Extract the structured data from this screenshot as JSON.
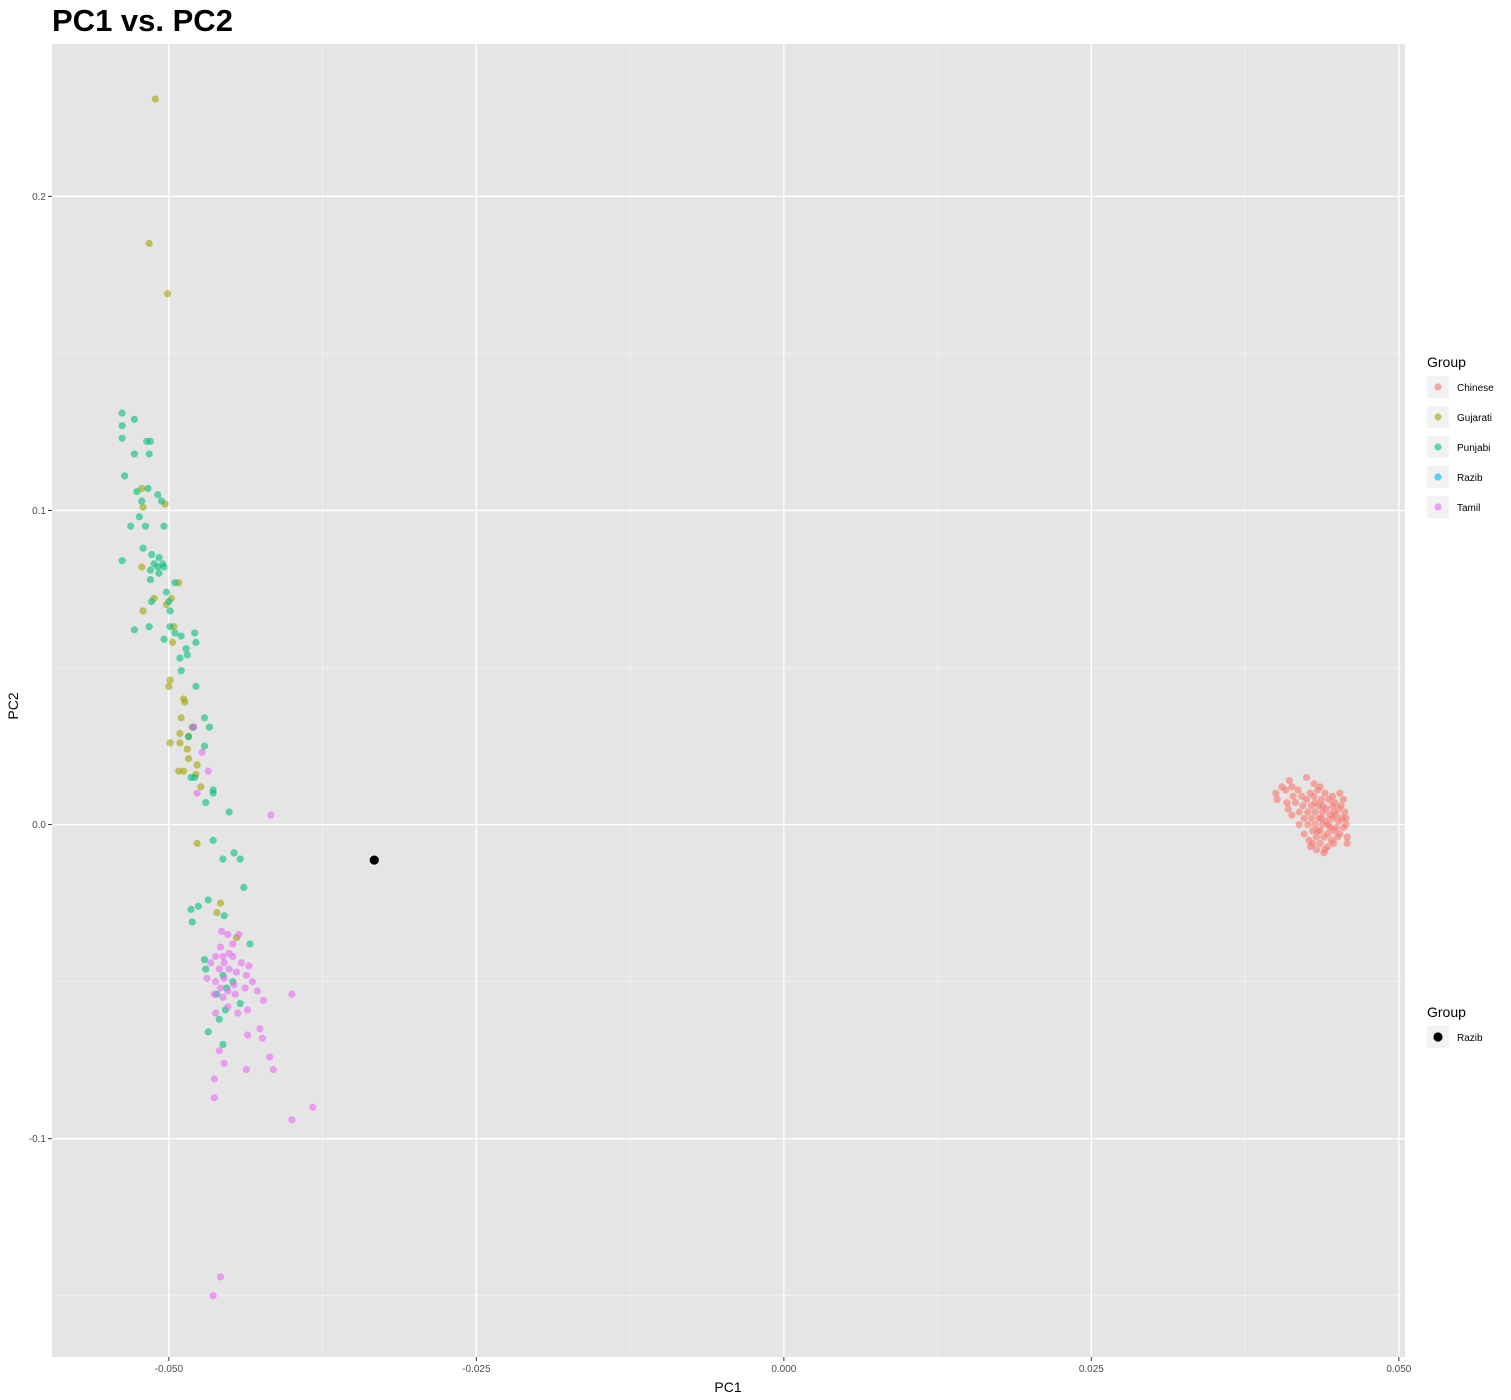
{
  "chart_data": {
    "type": "scatter",
    "title": "PC1 vs. PC2",
    "xlabel": "PC1",
    "ylabel": "PC2",
    "xlim": [
      -0.0595,
      0.0505
    ],
    "ylim": [
      -0.1695,
      0.2485
    ],
    "x_ticks": [
      {
        "value": -0.05,
        "label": "-0.050"
      },
      {
        "value": -0.025,
        "label": "-0.025"
      },
      {
        "value": 0.0,
        "label": "0.000"
      },
      {
        "value": 0.025,
        "label": "0.025"
      },
      {
        "value": 0.05,
        "label": "0.050"
      }
    ],
    "y_ticks": [
      {
        "value": -0.1,
        "label": "-0.1"
      },
      {
        "value": 0.0,
        "label": "0.0"
      },
      {
        "value": 0.1,
        "label": "0.1"
      },
      {
        "value": 0.2,
        "label": "0.2"
      }
    ],
    "grid": true,
    "background": "#e5e5e5",
    "legend_position": "right",
    "legends": [
      {
        "title": "Group",
        "entries": [
          {
            "label": "Chinese",
            "color": "#F8766D"
          },
          {
            "label": "Gujarati",
            "color": "#A3A500"
          },
          {
            "label": "Punjabi",
            "color": "#00BF7D"
          },
          {
            "label": "Razib",
            "color": "#00B0F6"
          },
          {
            "label": "Tamil",
            "color": "#E76BF3"
          }
        ]
      },
      {
        "title": "Group",
        "entries": [
          {
            "label": "Razib",
            "color": "#000000"
          }
        ]
      }
    ],
    "series": [
      {
        "name": "Gujarati",
        "color": "#A3A500",
        "opacity": 0.6,
        "points": [
          [
            -0.0511,
            0.231
          ],
          [
            -0.0516,
            0.185
          ],
          [
            -0.0501,
            0.169
          ],
          [
            -0.0522,
            0.107
          ],
          [
            -0.0521,
            0.101
          ],
          [
            -0.0503,
            0.102
          ],
          [
            -0.0522,
            0.082
          ],
          [
            -0.0512,
            0.072
          ],
          [
            -0.0492,
            0.077
          ],
          [
            -0.0498,
            0.072
          ],
          [
            -0.0502,
            0.07
          ],
          [
            -0.0521,
            0.068
          ],
          [
            -0.0496,
            0.063
          ],
          [
            -0.0497,
            0.058
          ],
          [
            -0.0499,
            0.046
          ],
          [
            -0.05,
            0.044
          ],
          [
            -0.0488,
            0.04
          ],
          [
            -0.0487,
            0.039
          ],
          [
            -0.049,
            0.034
          ],
          [
            -0.0481,
            0.031
          ],
          [
            -0.0491,
            0.029
          ],
          [
            -0.0484,
            0.028
          ],
          [
            -0.0491,
            0.026
          ],
          [
            -0.0485,
            0.024
          ],
          [
            -0.0499,
            0.026
          ],
          [
            -0.0484,
            0.021
          ],
          [
            -0.0477,
            0.019
          ],
          [
            -0.0488,
            0.017
          ],
          [
            -0.0492,
            0.017
          ],
          [
            -0.0478,
            0.016
          ],
          [
            -0.0474,
            0.012
          ],
          [
            -0.0477,
            -0.006
          ],
          [
            -0.0458,
            -0.025
          ],
          [
            -0.0461,
            -0.028
          ],
          [
            -0.0445,
            -0.036
          ]
        ]
      },
      {
        "name": "Punjabi",
        "color": "#00BF7D",
        "opacity": 0.6,
        "points": [
          [
            -0.0538,
            0.131
          ],
          [
            -0.0538,
            0.127
          ],
          [
            -0.0538,
            0.123
          ],
          [
            -0.0528,
            0.129
          ],
          [
            -0.0518,
            0.122
          ],
          [
            -0.0515,
            0.122
          ],
          [
            -0.0528,
            0.118
          ],
          [
            -0.0516,
            0.118
          ],
          [
            -0.0536,
            0.111
          ],
          [
            -0.0517,
            0.107
          ],
          [
            -0.0509,
            0.105
          ],
          [
            -0.0506,
            0.103
          ],
          [
            -0.0526,
            0.106
          ],
          [
            -0.0522,
            0.103
          ],
          [
            -0.0524,
            0.098
          ],
          [
            -0.0531,
            0.095
          ],
          [
            -0.0519,
            0.095
          ],
          [
            -0.0504,
            0.095
          ],
          [
            -0.0521,
            0.088
          ],
          [
            -0.0514,
            0.086
          ],
          [
            -0.0508,
            0.085
          ],
          [
            -0.0512,
            0.083
          ],
          [
            -0.0509,
            0.082
          ],
          [
            -0.0504,
            0.082
          ],
          [
            -0.0515,
            0.081
          ],
          [
            -0.0508,
            0.08
          ],
          [
            -0.0505,
            0.083
          ],
          [
            -0.0515,
            0.078
          ],
          [
            -0.0538,
            0.084
          ],
          [
            -0.0502,
            0.074
          ],
          [
            -0.0495,
            0.077
          ],
          [
            -0.05,
            0.071
          ],
          [
            -0.0514,
            0.071
          ],
          [
            -0.0499,
            0.068
          ],
          [
            -0.0528,
            0.062
          ],
          [
            -0.0516,
            0.063
          ],
          [
            -0.0499,
            0.063
          ],
          [
            -0.0495,
            0.061
          ],
          [
            -0.0504,
            0.059
          ],
          [
            -0.049,
            0.06
          ],
          [
            -0.0479,
            0.061
          ],
          [
            -0.0478,
            0.058
          ],
          [
            -0.0486,
            0.056
          ],
          [
            -0.0485,
            0.054
          ],
          [
            -0.0491,
            0.053
          ],
          [
            -0.049,
            0.049
          ],
          [
            -0.0478,
            0.044
          ],
          [
            -0.0471,
            0.034
          ],
          [
            -0.0467,
            0.031
          ],
          [
            -0.048,
            0.031
          ],
          [
            -0.0484,
            0.028
          ],
          [
            -0.0471,
            0.025
          ],
          [
            -0.0479,
            0.015
          ],
          [
            -0.0482,
            0.015
          ],
          [
            -0.0464,
            0.011
          ],
          [
            -0.0464,
            0.01
          ],
          [
            -0.047,
            0.007
          ],
          [
            -0.0451,
            0.004
          ],
          [
            -0.0464,
            -0.005
          ],
          [
            -0.0456,
            -0.011
          ],
          [
            -0.0447,
            -0.009
          ],
          [
            -0.0442,
            -0.011
          ],
          [
            -0.0439,
            -0.02
          ],
          [
            -0.0468,
            -0.024
          ],
          [
            -0.0476,
            -0.026
          ],
          [
            -0.0482,
            -0.027
          ],
          [
            -0.0481,
            -0.031
          ],
          [
            -0.0455,
            -0.029
          ],
          [
            -0.0434,
            -0.038
          ],
          [
            -0.0471,
            -0.043
          ],
          [
            -0.047,
            -0.046
          ],
          [
            -0.0456,
            -0.048
          ],
          [
            -0.0453,
            -0.052
          ],
          [
            -0.0442,
            -0.057
          ],
          [
            -0.0461,
            -0.054
          ],
          [
            -0.0459,
            -0.062
          ],
          [
            -0.0454,
            -0.059
          ],
          [
            -0.0468,
            -0.066
          ],
          [
            -0.0456,
            -0.07
          ],
          [
            -0.0448,
            -0.05
          ]
        ]
      },
      {
        "name": "Tamil",
        "color": "#E76BF3",
        "opacity": 0.6,
        "points": [
          [
            -0.0417,
            0.003
          ],
          [
            -0.048,
            0.031
          ],
          [
            -0.0473,
            0.023
          ],
          [
            -0.0468,
            0.017
          ],
          [
            -0.0477,
            0.01
          ],
          [
            -0.0457,
            -0.034
          ],
          [
            -0.0452,
            -0.035
          ],
          [
            -0.0443,
            -0.035
          ],
          [
            -0.0448,
            -0.038
          ],
          [
            -0.0458,
            -0.039
          ],
          [
            -0.0451,
            -0.041
          ],
          [
            -0.0456,
            -0.042
          ],
          [
            -0.0462,
            -0.042
          ],
          [
            -0.0448,
            -0.042
          ],
          [
            -0.0455,
            -0.044
          ],
          [
            -0.0466,
            -0.044
          ],
          [
            -0.0441,
            -0.044
          ],
          [
            -0.0435,
            -0.045
          ],
          [
            -0.0451,
            -0.046
          ],
          [
            -0.0459,
            -0.046
          ],
          [
            -0.0445,
            -0.047
          ],
          [
            -0.0437,
            -0.048
          ],
          [
            -0.0455,
            -0.049
          ],
          [
            -0.0469,
            -0.049
          ],
          [
            -0.0462,
            -0.05
          ],
          [
            -0.0447,
            -0.051
          ],
          [
            -0.0438,
            -0.052
          ],
          [
            -0.0458,
            -0.052
          ],
          [
            -0.0452,
            -0.053
          ],
          [
            -0.0463,
            -0.054
          ],
          [
            -0.0432,
            -0.05
          ],
          [
            -0.0428,
            -0.053
          ],
          [
            -0.0446,
            -0.054
          ],
          [
            -0.0456,
            -0.055
          ],
          [
            -0.0423,
            -0.056
          ],
          [
            -0.0452,
            -0.058
          ],
          [
            -0.0436,
            -0.059
          ],
          [
            -0.0444,
            -0.06
          ],
          [
            -0.0462,
            -0.06
          ],
          [
            -0.0426,
            -0.065
          ],
          [
            -0.0424,
            -0.068
          ],
          [
            -0.0436,
            -0.067
          ],
          [
            -0.0459,
            -0.072
          ],
          [
            -0.0455,
            -0.076
          ],
          [
            -0.0418,
            -0.074
          ],
          [
            -0.0437,
            -0.078
          ],
          [
            -0.0415,
            -0.078
          ],
          [
            -0.0463,
            -0.081
          ],
          [
            -0.0463,
            -0.087
          ],
          [
            -0.04,
            -0.054
          ],
          [
            -0.0383,
            -0.09
          ],
          [
            -0.04,
            -0.094
          ],
          [
            -0.0458,
            -0.144
          ],
          [
            -0.0464,
            -0.15
          ]
        ]
      },
      {
        "name": "Chinese",
        "color": "#F8766D",
        "opacity": 0.6,
        "points": [
          [
            0.04,
            0.01
          ],
          [
            0.0401,
            0.008
          ],
          [
            0.0405,
            0.012
          ],
          [
            0.0408,
            0.011
          ],
          [
            0.0409,
            0.007
          ],
          [
            0.0411,
            0.014
          ],
          [
            0.0413,
            0.012
          ],
          [
            0.0414,
            0.009
          ],
          [
            0.041,
            0.005
          ],
          [
            0.0413,
            0.003
          ],
          [
            0.0416,
            0.007
          ],
          [
            0.0418,
            0.011
          ],
          [
            0.0419,
            0.004
          ],
          [
            0.0419,
            0.0
          ],
          [
            0.0421,
            0.009
          ],
          [
            0.0422,
            0.006
          ],
          [
            0.0423,
            0.002
          ],
          [
            0.0423,
            -0.003
          ],
          [
            0.0425,
            0.008
          ],
          [
            0.0426,
            0.004
          ],
          [
            0.0426,
            0.0
          ],
          [
            0.0427,
            -0.005
          ],
          [
            0.0428,
            0.01
          ],
          [
            0.0429,
            0.006
          ],
          [
            0.0429,
            0.002
          ],
          [
            0.043,
            -0.002
          ],
          [
            0.043,
            -0.006
          ],
          [
            0.0431,
            0.009
          ],
          [
            0.0432,
            0.004
          ],
          [
            0.0432,
            0.0
          ],
          [
            0.0433,
            -0.004
          ],
          [
            0.0433,
            -0.008
          ],
          [
            0.0434,
            0.011
          ],
          [
            0.0435,
            0.006
          ],
          [
            0.0435,
            0.002
          ],
          [
            0.0436,
            -0.002
          ],
          [
            0.0436,
            -0.006
          ],
          [
            0.0437,
            0.008
          ],
          [
            0.0438,
            0.004
          ],
          [
            0.0438,
            0.0
          ],
          [
            0.0439,
            -0.004
          ],
          [
            0.0439,
            -0.009
          ],
          [
            0.044,
            0.01
          ],
          [
            0.0441,
            0.005
          ],
          [
            0.0441,
            0.001
          ],
          [
            0.0442,
            -0.003
          ],
          [
            0.0442,
            -0.007
          ],
          [
            0.0443,
            0.008
          ],
          [
            0.0444,
            0.003
          ],
          [
            0.0444,
            -0.001
          ],
          [
            0.0445,
            -0.005
          ],
          [
            0.0446,
            0.006
          ],
          [
            0.0446,
            0.002
          ],
          [
            0.0447,
            -0.002
          ],
          [
            0.0447,
            -0.006
          ],
          [
            0.0448,
            0.007
          ],
          [
            0.0449,
            0.003
          ],
          [
            0.0449,
            -0.001
          ],
          [
            0.045,
            -0.004
          ],
          [
            0.0451,
            0.005
          ],
          [
            0.0451,
            0.001
          ],
          [
            0.0452,
            -0.003
          ],
          [
            0.0453,
            0.006
          ],
          [
            0.0454,
            0.002
          ],
          [
            0.0455,
            -0.001
          ],
          [
            0.0456,
            0.004
          ],
          [
            0.0457,
            0.0
          ],
          [
            0.0458,
            -0.004
          ],
          [
            0.0458,
            -0.006
          ],
          [
            0.0457,
            0.002
          ],
          [
            0.0455,
            0.008
          ],
          [
            0.0452,
            0.01
          ],
          [
            0.0436,
            0.012
          ],
          [
            0.0431,
            0.013
          ],
          [
            0.0425,
            0.015
          ],
          [
            0.0446,
            0.009
          ],
          [
            0.044,
            -0.008
          ],
          [
            0.0428,
            -0.007
          ],
          [
            0.0434,
            -0.002
          ],
          [
            0.0438,
            0.006
          ],
          [
            0.0443,
            0.0
          ],
          [
            0.0447,
            0.004
          ],
          [
            0.0437,
            0.002
          ],
          [
            0.0432,
            0.007
          ]
        ]
      },
      {
        "name": "Razib",
        "color": "#000000",
        "opacity": 1.0,
        "points": [
          [
            -0.0333,
            -0.0113
          ]
        ]
      }
    ]
  }
}
